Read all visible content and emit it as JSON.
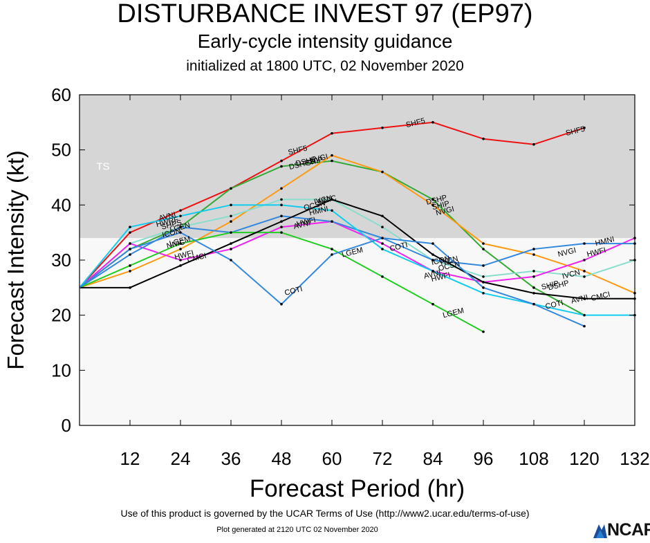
{
  "header": {
    "title": "DISTURBANCE INVEST 97 (EP97)",
    "subtitle": "Early-cycle intensity guidance",
    "init": "initialized at 1800 UTC, 02 November 2020"
  },
  "footer": {
    "terms": "Use of this product is governed by the UCAR Terms of Use (http://www2.ucar.edu/terms-of-use)",
    "generated": "Plot generated at 2120 UTC   02 November 2020",
    "logo": "NCAR"
  },
  "chart_data": {
    "type": "line",
    "xlabel": "Forecast Period (hr)",
    "ylabel": "Forecast Intensity (kt)",
    "xlim": [
      0,
      132
    ],
    "ylim": [
      0,
      60
    ],
    "xticks": [
      12,
      24,
      36,
      48,
      60,
      72,
      84,
      96,
      108,
      120,
      132
    ],
    "yticks": [
      0,
      10,
      20,
      30,
      40,
      50,
      60
    ],
    "shaded_region": {
      "label": "TS",
      "from": 34,
      "to": 60,
      "color": "#d6d6d6"
    },
    "background_color": "#f8f8f8",
    "series": [
      {
        "name": "SHF5",
        "color": "#ee1111",
        "x": [
          0,
          12,
          24,
          36,
          48,
          60,
          72,
          84,
          96,
          108,
          120
        ],
        "y": [
          25,
          35,
          39,
          43,
          48,
          53,
          54,
          55,
          52,
          51,
          54
        ],
        "labels": [
          [
            52,
            49.5
          ],
          [
            80,
            54.5
          ],
          [
            118,
            53
          ]
        ]
      },
      {
        "name": "DSHP",
        "color": "#33aa33",
        "x": [
          0,
          12,
          24,
          36,
          48,
          60,
          72,
          84,
          96,
          108,
          120
        ],
        "y": [
          25,
          32,
          36,
          43,
          47,
          48,
          46,
          41,
          32,
          25,
          20
        ],
        "labels": [
          [
            54,
            47.5
          ],
          [
            85,
            40.5
          ],
          [
            114,
            25
          ]
        ]
      },
      {
        "name": "SHIP",
        "color": "#ff9911",
        "x": [
          0,
          12,
          24,
          36,
          48,
          60,
          72,
          84,
          96,
          108,
          120,
          132
        ],
        "y": [
          25,
          28,
          32,
          37,
          43,
          49,
          46,
          40,
          33,
          31,
          28,
          24
        ],
        "labels": [
          [
            56,
            47.5
          ],
          [
            86,
            39.5
          ],
          [
            112,
            25
          ]
        ]
      },
      {
        "name": "IVCN",
        "color": "#88ddcc",
        "x": [
          0,
          12,
          24,
          36,
          48,
          60,
          72,
          84,
          96,
          108,
          120,
          132
        ],
        "y": [
          25,
          33,
          36,
          38,
          41,
          41,
          36,
          30,
          27,
          28,
          27,
          30
        ],
        "labels": [
          [
            58,
            40.5
          ],
          [
            88,
            29.5
          ],
          [
            117,
            27
          ]
        ]
      },
      {
        "name": "HWFI",
        "color": "#ee22ee",
        "x": [
          0,
          12,
          24,
          36,
          48,
          60,
          72,
          84,
          96,
          108,
          120,
          132
        ],
        "y": [
          25,
          33,
          30,
          32,
          36,
          37,
          33,
          28,
          26,
          27,
          30,
          34
        ],
        "labels": [
          [
            25,
            30.5
          ],
          [
            54,
            36.5
          ],
          [
            86,
            26.5
          ],
          [
            123,
            31
          ]
        ]
      },
      {
        "name": "HMNI",
        "color": "#3388dd",
        "x": [
          0,
          12,
          24,
          36,
          48,
          60,
          72,
          84,
          96,
          108,
          120,
          132
        ],
        "y": [
          25,
          31,
          36,
          35,
          38,
          37,
          34,
          30,
          29,
          32,
          33,
          33
        ],
        "labels": [
          [
            57,
            38.5
          ],
          [
            125,
            33
          ]
        ]
      },
      {
        "name": "AVNI",
        "color": "#11ccee",
        "x": [
          0,
          12,
          24,
          36,
          48,
          60,
          72,
          84,
          96,
          108,
          120,
          132
        ],
        "y": [
          25,
          36,
          38,
          40,
          40,
          39,
          32,
          28,
          24,
          22,
          20,
          20
        ],
        "labels": [
          [
            21,
            37.5
          ],
          [
            53,
            36
          ],
          [
            84,
            27
          ],
          [
            119,
            22.5
          ]
        ]
      },
      {
        "name": "NVGI",
        "color": "#ff9911",
        "x": [],
        "y": [],
        "labels": [
          [
            57,
            48
          ],
          [
            87,
            38.5
          ],
          [
            116,
            31
          ]
        ]
      },
      {
        "name": "HWRF",
        "color": "#ee22ee",
        "x": [],
        "y": [],
        "labels": [
          [
            21,
            36.5
          ]
        ]
      },
      {
        "name": "OCSN",
        "color": "#999999",
        "x": [],
        "y": [],
        "labels": [
          [
            56,
            39.5
          ],
          [
            88,
            28.5
          ]
        ]
      },
      {
        "name": "ICON",
        "color": "#999999",
        "x": [],
        "y": [],
        "labels": [
          [
            22,
            34.5
          ],
          [
            86,
            29.5
          ]
        ]
      },
      {
        "name": "LGEM",
        "color": "#22cc22",
        "x": [
          0,
          12,
          24,
          36,
          48,
          60,
          72,
          84,
          96
        ],
        "y": [
          25,
          29,
          33,
          35,
          35,
          32,
          27,
          22,
          17
        ],
        "labels": [
          [
            24,
            33
          ],
          [
            65,
            31
          ],
          [
            89,
            20
          ]
        ]
      },
      {
        "name": "NNIC",
        "color": "#000000",
        "x": [
          0,
          12,
          24,
          36,
          48,
          60,
          72,
          84,
          96,
          108,
          120,
          132
        ],
        "y": [
          25,
          25,
          29,
          33,
          37,
          41,
          38,
          31,
          26,
          24,
          23,
          23
        ],
        "labels": [
          [
            23,
            32.5
          ],
          [
            59,
            40.5
          ]
        ]
      },
      {
        "name": "CMCI",
        "color": "#000000",
        "x": [],
        "y": [],
        "labels": [
          [
            28,
            30
          ],
          [
            124,
            23
          ]
        ]
      },
      {
        "name": "COTI",
        "color": "#3388dd",
        "x": [
          0,
          12,
          24,
          36,
          48,
          60,
          72,
          84,
          96,
          108,
          120
        ],
        "y": [
          25,
          32,
          35,
          30,
          22,
          31,
          34,
          33,
          25,
          22,
          18
        ],
        "labels": [
          [
            51,
            24
          ],
          [
            76,
            32
          ],
          [
            113,
            21.5
          ]
        ]
      },
      {
        "name": "LGEN",
        "color": "#555555",
        "x": [],
        "y": [],
        "labels": [
          [
            24,
            35.5
          ]
        ]
      },
      {
        "name": "SHPS",
        "color": "#555555",
        "x": [],
        "y": [],
        "labels": [
          [
            22,
            36
          ]
        ]
      },
      {
        "name": "DSHPS",
        "color": "#33aa33",
        "x": [],
        "y": [],
        "labels": [
          [
            53,
            47
          ]
        ]
      }
    ]
  }
}
